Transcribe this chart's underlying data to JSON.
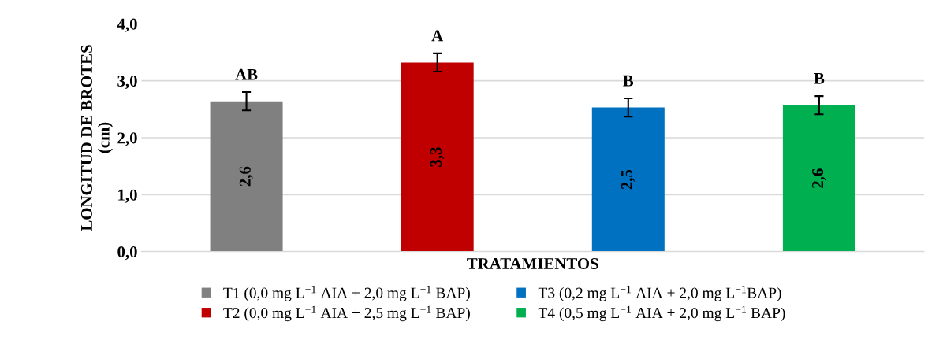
{
  "chart_data": {
    "type": "bar",
    "xlabel": "TRATAMIENTOS",
    "ylabel": "LONGITUD DE BROTES\n(cm)",
    "categories": [
      null,
      null,
      null,
      null
    ],
    "series": [
      {
        "name": "T1 (0,0 mg L$^{−1}$ AIA + 2,0 mg L$^{−1}$ BAP)",
        "color": "#808080",
        "values": [
          2.64,
          null,
          null,
          null
        ],
        "errors": [
          0.16,
          null,
          null,
          null
        ],
        "value_labels": [
          "2,6",
          null,
          null,
          null
        ]
      },
      {
        "name": "T2 (0,0 mg L$^{−1}$ AIA + 2,5 mg L$^{−1}$ BAP)",
        "color": "#c00000",
        "values": [
          null,
          3.32,
          null,
          null
        ],
        "errors": [
          null,
          0.16,
          null,
          null
        ],
        "value_labels": [
          null,
          "3,3",
          null,
          null
        ]
      },
      {
        "name": "T3 (0,2 mg L$^{−1}$ AIA + 2,0 mg L$^{−1}$BAP)",
        "color": "#0070c0",
        "values": [
          null,
          null,
          2.53,
          null
        ],
        "errors": [
          null,
          null,
          0.16,
          null
        ],
        "value_labels": [
          null,
          null,
          "2,5",
          null
        ]
      },
      {
        "name": "T4 (0,5 mg L$^{−1}$ AIA + 2,0 mg L$^{−1}$ BAP)",
        "color": "#00b050",
        "values": [
          null,
          null,
          null,
          2.57
        ],
        "errors": [
          null,
          null,
          null,
          0.16
        ],
        "value_labels": [
          null,
          null,
          null,
          "2,6"
        ]
      }
    ],
    "annotations": [
      "AB",
      "A",
      "B",
      "B"
    ],
    "ylim": [
      0,
      4
    ],
    "yticks": [
      {
        "value": 0,
        "label": "0,0"
      },
      {
        "value": 1,
        "label": "1,0"
      },
      {
        "value": 2,
        "label": "2,0"
      },
      {
        "value": 3,
        "label": "3,0"
      },
      {
        "value": 4,
        "label": "4,0"
      }
    ],
    "grid": "y",
    "legend": "bottom"
  }
}
